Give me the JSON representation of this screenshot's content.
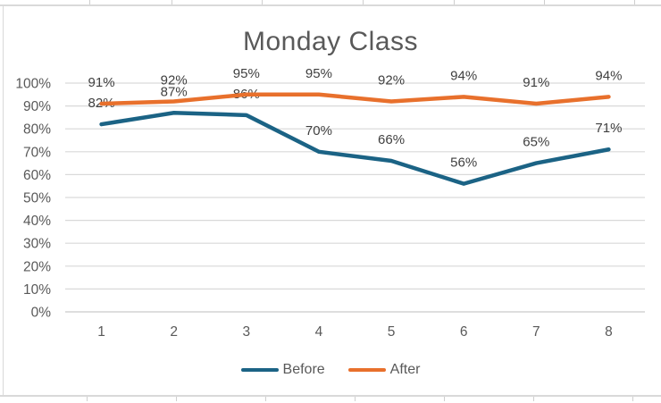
{
  "chart_data": {
    "type": "line",
    "title": "Monday Class",
    "categories": [
      "1",
      "2",
      "3",
      "4",
      "5",
      "6",
      "7",
      "8"
    ],
    "series": [
      {
        "name": "Before",
        "color": "#1b6385",
        "values": [
          82,
          87,
          86,
          70,
          66,
          56,
          65,
          71
        ]
      },
      {
        "name": "After",
        "color": "#e8702c",
        "values": [
          91,
          92,
          95,
          95,
          92,
          94,
          91,
          94
        ]
      }
    ],
    "data_label_format": "{v}%",
    "y_ticks": [
      "100%",
      "90%",
      "80%",
      "70%",
      "60%",
      "50%",
      "40%",
      "30%",
      "20%",
      "10%",
      "0%"
    ],
    "ylim": [
      0,
      100
    ],
    "grid": true,
    "legend_position": "bottom",
    "colors": {
      "gridline": "#d9d9d9",
      "axis_text": "#595959",
      "title_text": "#595959",
      "data_label_text": "#3f3f3f"
    }
  }
}
